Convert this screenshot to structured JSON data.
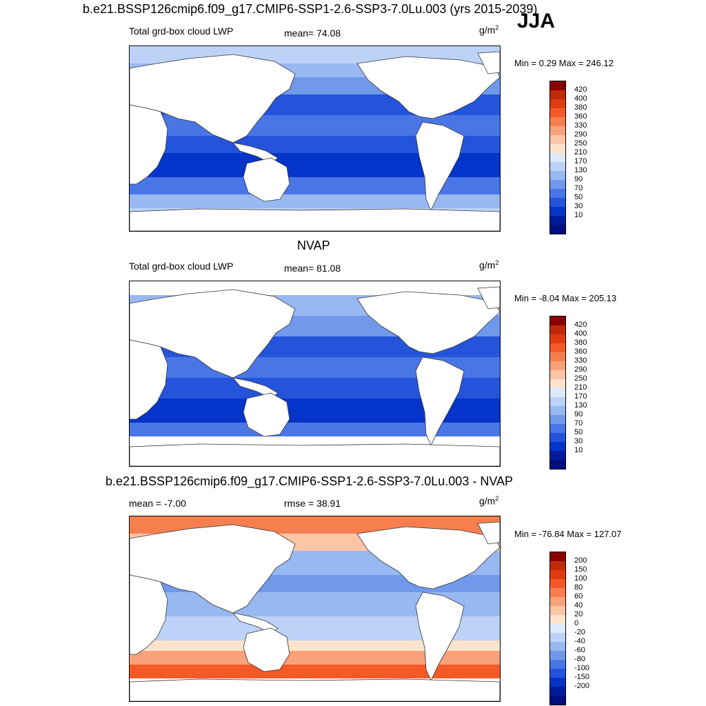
{
  "header": {
    "title": "b.e21.BSSP126cmip6.f09_g17.CMIP6-SSP1-2.6-SSP3-7.0Lu.003 (yrs 2015-2039)",
    "season": "JJA"
  },
  "panels": [
    {
      "title": "",
      "left_label": "Total grd-box cloud LWP",
      "center_label": "mean=  74.08",
      "units": "g/m",
      "units_sup": "2",
      "minmax": "Min =   0.29 Max = 246.12",
      "colorbar": {
        "labels": [
          "420",
          "400",
          "380",
          "360",
          "330",
          "290",
          "250",
          "210",
          "170",
          "130",
          "90",
          "70",
          "50",
          "30",
          "10"
        ],
        "colors": [
          "#8b0000",
          "#c02a08",
          "#e03a10",
          "#f45a28",
          "#f77f4f",
          "#f9a27a",
          "#fbc5a6",
          "#fde3cc",
          "#dceafa",
          "#bcd3f7",
          "#98b8f2",
          "#7099ec",
          "#4976e6",
          "#2454db",
          "#0434c9",
          "#001c9c",
          "#000f80"
        ]
      },
      "field": "model"
    },
    {
      "title": "NVAP",
      "left_label": "Total grd-box cloud LWP",
      "center_label": "mean=  81.08",
      "units": "g/m",
      "units_sup": "2",
      "minmax": "Min =  -8.04 Max = 205.13",
      "colorbar": {
        "labels": [
          "420",
          "400",
          "380",
          "360",
          "330",
          "290",
          "250",
          "210",
          "170",
          "130",
          "90",
          "70",
          "50",
          "30",
          "10"
        ],
        "colors": [
          "#8b0000",
          "#c02a08",
          "#e03a10",
          "#f45a28",
          "#f77f4f",
          "#f9a27a",
          "#fbc5a6",
          "#fde3cc",
          "#dceafa",
          "#bcd3f7",
          "#98b8f2",
          "#7099ec",
          "#4976e6",
          "#2454db",
          "#0434c9",
          "#001c9c",
          "#000f80"
        ]
      },
      "field": "obs"
    },
    {
      "title": "b.e21.BSSP126cmip6.f09_g17.CMIP6-SSP1-2.6-SSP3-7.0Lu.003 - NVAP",
      "left_label": "mean =  -7.00",
      "center_label": "rmse =  38.91",
      "units": "g/m",
      "units_sup": "2",
      "minmax": "Min = -76.84 Max = 127.07",
      "colorbar": {
        "labels": [
          "200",
          "150",
          "100",
          "80",
          "60",
          "40",
          "20",
          "0",
          "-20",
          "-40",
          "-60",
          "-80",
          "-100",
          "-150",
          "-200"
        ],
        "colors": [
          "#8b0000",
          "#c02a08",
          "#e03a10",
          "#f45a28",
          "#f77f4f",
          "#f9a27a",
          "#fbc5a6",
          "#fde3cc",
          "#dceafa",
          "#bcd3f7",
          "#98b8f2",
          "#7099ec",
          "#4976e6",
          "#2454db",
          "#0434c9",
          "#001c9c",
          "#000f80"
        ]
      },
      "field": "diff"
    }
  ]
}
